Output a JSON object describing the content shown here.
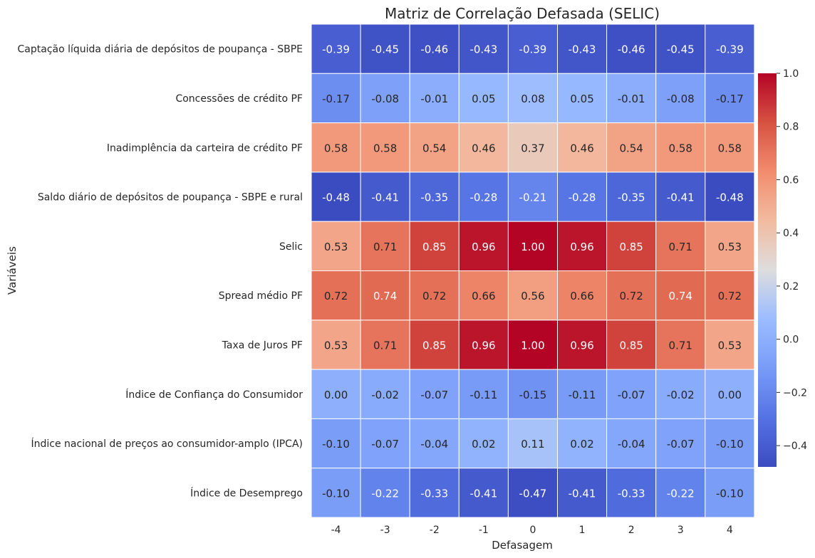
{
  "chart_data": {
    "type": "heatmap",
    "title": "Matriz de Correlação Defasada (SELIC)",
    "xlabel": "Defasagem",
    "ylabel": "Variáveis",
    "x_categories": [
      "-4",
      "-3",
      "-2",
      "-1",
      "0",
      "1",
      "2",
      "3",
      "4"
    ],
    "y_categories": [
      "Captação líquida diária de depósitos de poupança - SBPE",
      "Concessões de crédito PF",
      "Inadimplência da carteira de crédito PF",
      "Saldo diário de depósitos de poupança - SBPE e rural",
      "Selic",
      "Spread médio PF",
      "Taxa de Juros PF",
      "Índice de Confiança do Consumidor",
      "Índice nacional de preços ao consumidor-amplo (IPCA)",
      "Índice de Desemprego"
    ],
    "values": [
      [
        -0.39,
        -0.45,
        -0.46,
        -0.43,
        -0.39,
        -0.43,
        -0.46,
        -0.45,
        -0.39
      ],
      [
        -0.17,
        -0.08,
        -0.01,
        0.05,
        0.08,
        0.05,
        -0.01,
        -0.08,
        -0.17
      ],
      [
        0.58,
        0.58,
        0.54,
        0.46,
        0.37,
        0.46,
        0.54,
        0.58,
        0.58
      ],
      [
        -0.48,
        -0.41,
        -0.35,
        -0.28,
        -0.21,
        -0.28,
        -0.35,
        -0.41,
        -0.48
      ],
      [
        0.53,
        0.71,
        0.85,
        0.96,
        1.0,
        0.96,
        0.85,
        0.71,
        0.53
      ],
      [
        0.72,
        0.74,
        0.72,
        0.66,
        0.56,
        0.66,
        0.72,
        0.74,
        0.72
      ],
      [
        0.53,
        0.71,
        0.85,
        0.96,
        1.0,
        0.96,
        0.85,
        0.71,
        0.53
      ],
      [
        -0.0,
        -0.02,
        -0.07,
        -0.11,
        -0.15,
        -0.11,
        -0.07,
        -0.02,
        -0.0
      ],
      [
        -0.1,
        -0.07,
        -0.04,
        0.02,
        0.11,
        0.02,
        -0.04,
        -0.07,
        -0.1
      ],
      [
        -0.1,
        -0.22,
        -0.33,
        -0.41,
        -0.47,
        -0.41,
        -0.33,
        -0.22,
        -0.1
      ]
    ],
    "value_format": "2 decimals",
    "colormap": "coolwarm",
    "colorbar": {
      "range": [
        -0.48,
        1.0
      ],
      "ticks": [
        1.0,
        0.8,
        0.6,
        0.4,
        0.2,
        0.0,
        -0.2,
        -0.4
      ],
      "tick_labels": [
        "1.0",
        "0.8",
        "0.6",
        "0.4",
        "0.2",
        "0.0",
        "−0.2",
        "−0.4"
      ]
    },
    "grid": true,
    "colors": {
      "cold": "#3b4cc0",
      "neutral": "#dddddd",
      "hot": "#b40426",
      "cell_border": "#ffffff",
      "text_dark": "#262626",
      "text_light": "#ffffff"
    }
  }
}
